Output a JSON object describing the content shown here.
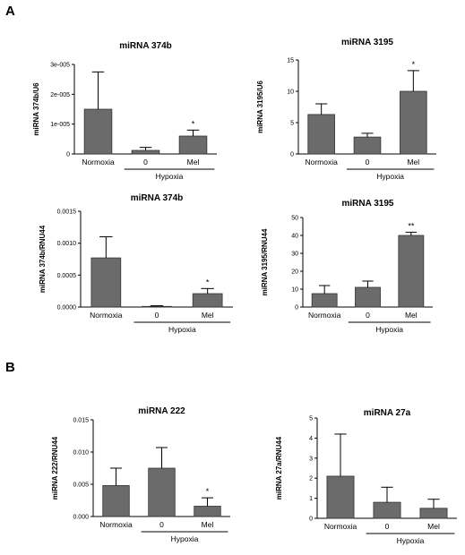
{
  "figure": {
    "panel_a": "A",
    "panel_b": "B"
  },
  "chart_data": [
    {
      "type": "bar",
      "title": "miRNA 374b",
      "ylabel": "miRNA 374b/U6",
      "categories": [
        "Normoxia",
        "0",
        "Mel"
      ],
      "values": [
        1.5e-05,
        1.2e-06,
        6e-06
      ],
      "errors": [
        1.25e-05,
        1e-06,
        2e-06
      ],
      "significance": [
        "",
        "",
        "*"
      ],
      "ylim": [
        0,
        3e-05
      ],
      "yticks": [
        0,
        1e-05,
        2e-05,
        3e-05
      ],
      "ytick_labels": [
        "0",
        "1e-005",
        "2e-005",
        "3e-005"
      ],
      "group_label": "Hypoxia",
      "grid": false
    },
    {
      "type": "bar",
      "title": "miRNA 3195",
      "ylabel": "miRNA 3195/U6",
      "categories": [
        "Normoxia",
        "0",
        "Mel"
      ],
      "values": [
        6.3,
        2.7,
        10.0
      ],
      "errors": [
        1.7,
        0.6,
        3.3
      ],
      "significance": [
        "",
        "",
        "*"
      ],
      "ylim": [
        0,
        15
      ],
      "yticks": [
        0,
        5,
        10,
        15
      ],
      "ytick_labels": [
        "0",
        "5",
        "10",
        "15"
      ],
      "group_label": "Hypoxia",
      "grid": false
    },
    {
      "type": "bar",
      "title": "miRNA 374b",
      "ylabel": "miRNA 374b/RNU44",
      "categories": [
        "Normoxia",
        "0",
        "Mel"
      ],
      "values": [
        0.00077,
        1e-05,
        0.00021
      ],
      "errors": [
        0.00033,
        1e-05,
        8e-05
      ],
      "significance": [
        "",
        "",
        "*"
      ],
      "ylim": [
        0,
        0.0015
      ],
      "yticks": [
        0,
        0.0005,
        0.001,
        0.0015
      ],
      "ytick_labels": [
        "0.0000",
        "0.0005",
        "0.0010",
        "0.0015"
      ],
      "group_label": "Hypoxia",
      "grid": false
    },
    {
      "type": "bar",
      "title": "miRNA 3195",
      "ylabel": "miRNA 3195/RNU44",
      "categories": [
        "Normoxia",
        "0",
        "Mel"
      ],
      "values": [
        7.5,
        11.0,
        40.0
      ],
      "errors": [
        4.5,
        3.5,
        1.8
      ],
      "significance": [
        "",
        "",
        "**"
      ],
      "ylim": [
        0,
        50
      ],
      "yticks": [
        0,
        10,
        20,
        30,
        40,
        50
      ],
      "ytick_labels": [
        "0",
        "10",
        "20",
        "30",
        "40",
        "50"
      ],
      "group_label": "Hypoxia",
      "grid": false
    },
    {
      "type": "bar",
      "title": "miRNA 222",
      "ylabel": "miRNA 222/RNU44",
      "categories": [
        "Normoxia",
        "0",
        "Mel"
      ],
      "values": [
        0.0048,
        0.0075,
        0.0016
      ],
      "errors": [
        0.0027,
        0.0032,
        0.0013
      ],
      "significance": [
        "",
        "",
        "*"
      ],
      "ylim": [
        0,
        0.015
      ],
      "yticks": [
        0,
        0.005,
        0.01,
        0.015
      ],
      "ytick_labels": [
        "0.000",
        "0.005",
        "0.010",
        "0.015"
      ],
      "group_label": "Hypoxia",
      "grid": false
    },
    {
      "type": "bar",
      "title": "miRNA 27a",
      "ylabel": "miRNA 27a/RNU44",
      "categories": [
        "Normoxia",
        "0",
        "Mel"
      ],
      "values": [
        2.1,
        0.8,
        0.5
      ],
      "errors": [
        2.1,
        0.75,
        0.45
      ],
      "significance": [
        "",
        "",
        ""
      ],
      "ylim": [
        0,
        5
      ],
      "yticks": [
        0,
        1,
        2,
        3,
        4,
        5
      ],
      "ytick_labels": [
        "0",
        "1",
        "2",
        "3",
        "4",
        "5"
      ],
      "group_label": "Hypoxia",
      "grid": false
    }
  ],
  "colors": {
    "bar_fill": "#6b6b6b",
    "bar_stroke": "#333333",
    "axis": "#000000"
  }
}
